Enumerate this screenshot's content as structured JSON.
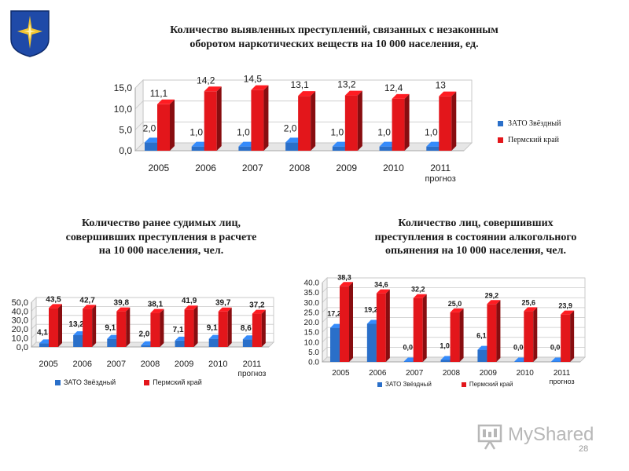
{
  "colors": {
    "blue": "#2a6fc9",
    "red": "#e3161b",
    "grid": "#c8c8c8"
  },
  "page_number": "28",
  "watermark": "MyShared",
  "chart_data": [
    {
      "type": "bar",
      "title": [
        "Количество выявленных преступлений, связанных с незаконным",
        "оборотом наркотических веществ на 10 000 населения, ед."
      ],
      "categories": [
        "2005",
        "2006",
        "2007",
        "2008",
        "2009",
        "2010",
        "2011"
      ],
      "category_sublabel": {
        "index": 6,
        "text": "прогноз"
      },
      "series": [
        {
          "name": "ЗАТО Звёздный",
          "color": "blue",
          "values": [
            2.0,
            1.0,
            1.0,
            2.0,
            1.0,
            1.0,
            1.0
          ],
          "labels": [
            "2,0",
            "1,0",
            "1,0",
            "2,0",
            "1,0",
            "1,0",
            "1,0"
          ]
        },
        {
          "name": "Пермский край",
          "color": "red",
          "values": [
            11.1,
            14.2,
            14.5,
            13.1,
            13.2,
            12.4,
            13.0
          ],
          "labels": [
            "11,1",
            "14,2",
            "14,5",
            "13,1",
            "13,2",
            "12,4",
            "13"
          ]
        }
      ],
      "yticks": [
        "0,0",
        "5,0",
        "10,0",
        "15,0"
      ],
      "ylim": [
        0,
        15
      ]
    },
    {
      "type": "bar",
      "title": [
        "Количество ранее судимых лиц,",
        "совершивших преступления в расчете",
        "на 10 000 населения, чел."
      ],
      "categories": [
        "2005",
        "2006",
        "2007",
        "2008",
        "2009",
        "2010",
        "2011"
      ],
      "category_sublabel": {
        "index": 6,
        "text": "прогноз"
      },
      "series": [
        {
          "name": "ЗАТО Звёздный",
          "color": "blue",
          "values": [
            4.1,
            13.2,
            9.1,
            2.0,
            7.1,
            9.1,
            8.6
          ],
          "labels": [
            "4,1",
            "13,2",
            "9,1",
            "2,0",
            "7,1",
            "9,1",
            "8,6"
          ]
        },
        {
          "name": "Пермский край",
          "color": "red",
          "values": [
            43.5,
            42.7,
            39.8,
            38.1,
            41.9,
            39.7,
            37.2
          ],
          "labels": [
            "43,5",
            "42,7",
            "39,8",
            "38,1",
            "41,9",
            "39,7",
            "37,2"
          ]
        }
      ],
      "yticks": [
        "0,0",
        "10,0",
        "20,0",
        "30,0",
        "40,0",
        "50,0"
      ],
      "ylim": [
        0,
        50
      ]
    },
    {
      "type": "bar",
      "title": [
        "Количество лиц, совершивших",
        "преступления в состоянии алкогольного",
        "опьянения на 10 000 населения, чел."
      ],
      "categories": [
        "2005",
        "2006",
        "2007",
        "2008",
        "2009",
        "2010",
        "2011"
      ],
      "category_sublabel": {
        "index": 6,
        "text": "прогноз"
      },
      "series": [
        {
          "name": "ЗАТО Звёздный",
          "color": "blue",
          "values": [
            17.2,
            19.2,
            0.0,
            1.0,
            6.1,
            0.0,
            0.0
          ],
          "labels": [
            "17,2",
            "19,2",
            "0,0",
            "1,0",
            "6,1",
            "0,0",
            "0,0"
          ]
        },
        {
          "name": "Пермский край",
          "color": "red",
          "values": [
            38.3,
            34.6,
            32.2,
            25.0,
            29.2,
            25.6,
            23.9
          ],
          "labels": [
            "38,3",
            "34,6",
            "32,2",
            "25,0",
            "29,2",
            "25,6",
            "23,9"
          ]
        }
      ],
      "yticks": [
        "0.0",
        "5.0",
        "10.0",
        "15.0",
        "20.0",
        "25.0",
        "30.0",
        "35.0",
        "40.0"
      ],
      "ylim": [
        0,
        40
      ]
    }
  ]
}
